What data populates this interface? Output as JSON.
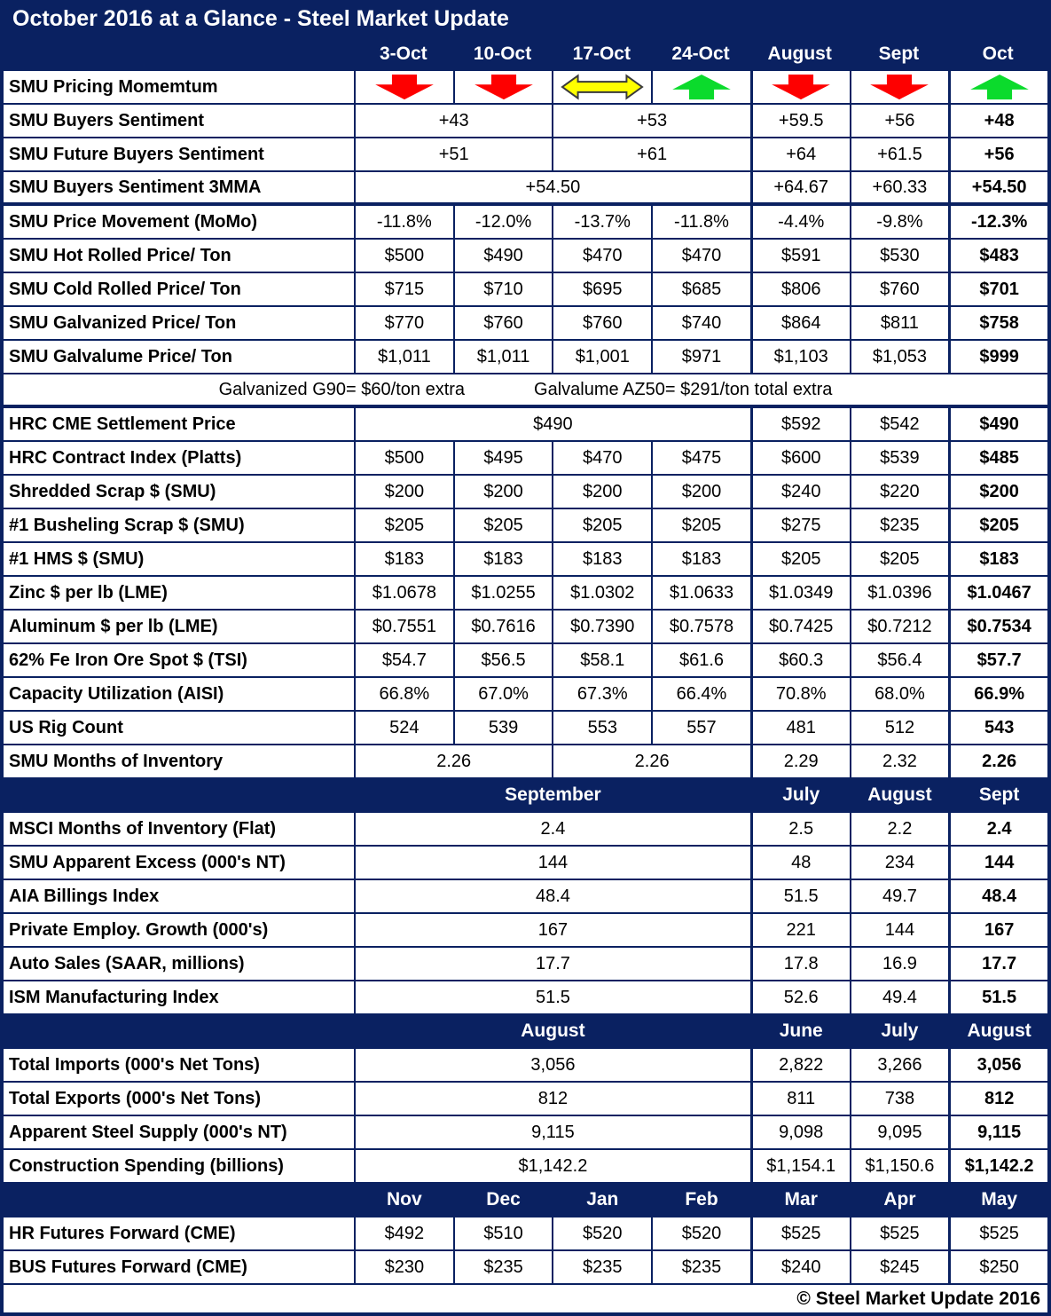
{
  "title": "October 2016 at a Glance - Steel Market Update",
  "footer": "© Steel Market Update 2016",
  "colors": {
    "navy": "#0A2161",
    "arrow_down": "#FE0000",
    "arrow_up": "#0BDB2C",
    "arrow_flat": "#FFFF00",
    "arrow_flat_outline": "#3A3A3A"
  },
  "header_columns": [
    "3-Oct",
    "10-Oct",
    "17-Oct",
    "24-Oct",
    "August",
    "Sept",
    "Oct"
  ],
  "rows": [
    {
      "label": "SMU Pricing Momemtum",
      "cells": [
        {
          "arrow": "down"
        },
        {
          "arrow": "down"
        },
        {
          "arrow": "leftright"
        },
        {
          "arrow": "up"
        },
        {
          "arrow": "down"
        },
        {
          "arrow": "down"
        },
        {
          "arrow": "up"
        }
      ]
    },
    {
      "label": "SMU Buyers Sentiment",
      "cells": [
        {
          "text": "+43",
          "span": 2
        },
        {
          "text": "+53",
          "span": 2
        },
        {
          "text": "+59.5"
        },
        {
          "text": "+56"
        },
        {
          "text": "+48",
          "bold": true
        }
      ]
    },
    {
      "label": "SMU Future Buyers Sentiment",
      "cells": [
        {
          "text": "+51",
          "span": 2
        },
        {
          "text": "+61",
          "span": 2
        },
        {
          "text": "+64"
        },
        {
          "text": "+61.5"
        },
        {
          "text": "+56",
          "bold": true
        }
      ]
    },
    {
      "label": "SMU Buyers Sentiment 3MMA",
      "thick_bottom": true,
      "cells": [
        {
          "text": "+54.50",
          "span": 4
        },
        {
          "text": "+64.67"
        },
        {
          "text": "+60.33"
        },
        {
          "text": "+54.50",
          "bold": true
        }
      ]
    },
    {
      "label": "SMU Price Movement (MoMo)",
      "cells": [
        {
          "text": "-11.8%"
        },
        {
          "text": "-12.0%"
        },
        {
          "text": "-13.7%"
        },
        {
          "text": "-11.8%"
        },
        {
          "text": "-4.4%"
        },
        {
          "text": "-9.8%"
        },
        {
          "text": "-12.3%",
          "bold": true
        }
      ]
    },
    {
      "label": "SMU Hot Rolled Price/ Ton",
      "cells": [
        {
          "text": "$500"
        },
        {
          "text": "$490"
        },
        {
          "text": "$470"
        },
        {
          "text": "$470"
        },
        {
          "text": "$591"
        },
        {
          "text": "$530"
        },
        {
          "text": "$483",
          "bold": true
        }
      ]
    },
    {
      "label": "SMU Cold Rolled Price/ Ton",
      "cells": [
        {
          "text": "$715"
        },
        {
          "text": "$710"
        },
        {
          "text": "$695"
        },
        {
          "text": "$685"
        },
        {
          "text": "$806"
        },
        {
          "text": "$760"
        },
        {
          "text": "$701",
          "bold": true
        }
      ]
    },
    {
      "label": "SMU Galvanized Price/ Ton",
      "cells": [
        {
          "text": "$770"
        },
        {
          "text": "$760"
        },
        {
          "text": "$760"
        },
        {
          "text": "$740"
        },
        {
          "text": "$864"
        },
        {
          "text": "$811"
        },
        {
          "text": "$758",
          "bold": true
        }
      ]
    },
    {
      "label": "SMU Galvalume Price/ Ton",
      "cells": [
        {
          "text": "$1,011"
        },
        {
          "text": "$1,011"
        },
        {
          "text": "$1,001"
        },
        {
          "text": "$971"
        },
        {
          "text": "$1,103"
        },
        {
          "text": "$1,053"
        },
        {
          "text": "$999",
          "bold": true
        }
      ]
    },
    {
      "type": "note",
      "thick_bottom": true,
      "note_left": "Galvanized G90= $60/ton extra",
      "note_right": "Galvalume AZ50= $291/ton total extra"
    },
    {
      "label": "HRC CME Settlement Price",
      "cells": [
        {
          "text": "$490",
          "span": 4
        },
        {
          "text": "$592"
        },
        {
          "text": "$542"
        },
        {
          "text": "$490",
          "bold": true
        }
      ]
    },
    {
      "label": "HRC Contract Index (Platts)",
      "cells": [
        {
          "text": "$500"
        },
        {
          "text": "$495"
        },
        {
          "text": "$470"
        },
        {
          "text": "$475"
        },
        {
          "text": "$600"
        },
        {
          "text": "$539"
        },
        {
          "text": "$485",
          "bold": true
        }
      ]
    },
    {
      "label": "Shredded Scrap $ (SMU)",
      "cells": [
        {
          "text": "$200"
        },
        {
          "text": "$200"
        },
        {
          "text": "$200"
        },
        {
          "text": "$200"
        },
        {
          "text": "$240"
        },
        {
          "text": "$220"
        },
        {
          "text": "$200",
          "bold": true
        }
      ]
    },
    {
      "label": "#1 Busheling Scrap $ (SMU)",
      "cells": [
        {
          "text": "$205"
        },
        {
          "text": "$205"
        },
        {
          "text": "$205"
        },
        {
          "text": "$205"
        },
        {
          "text": "$275"
        },
        {
          "text": "$235"
        },
        {
          "text": "$205",
          "bold": true
        }
      ]
    },
    {
      "label": "#1 HMS $ (SMU)",
      "cells": [
        {
          "text": "$183"
        },
        {
          "text": "$183"
        },
        {
          "text": "$183"
        },
        {
          "text": "$183"
        },
        {
          "text": "$205"
        },
        {
          "text": "$205"
        },
        {
          "text": "$183",
          "bold": true
        }
      ]
    },
    {
      "label": "Zinc $ per lb (LME)",
      "cells": [
        {
          "text": "$1.0678"
        },
        {
          "text": "$1.0255"
        },
        {
          "text": "$1.0302"
        },
        {
          "text": "$1.0633"
        },
        {
          "text": "$1.0349"
        },
        {
          "text": "$1.0396"
        },
        {
          "text": "$1.0467",
          "bold": true
        }
      ]
    },
    {
      "label": "Aluminum $ per lb (LME)",
      "cells": [
        {
          "text": "$0.7551"
        },
        {
          "text": "$0.7616"
        },
        {
          "text": "$0.7390"
        },
        {
          "text": "$0.7578"
        },
        {
          "text": "$0.7425"
        },
        {
          "text": "$0.7212"
        },
        {
          "text": "$0.7534",
          "bold": true
        }
      ]
    },
    {
      "label": "62% Fe Iron Ore Spot $ (TSI)",
      "cells": [
        {
          "text": "$54.7"
        },
        {
          "text": "$56.5"
        },
        {
          "text": "$58.1"
        },
        {
          "text": "$61.6"
        },
        {
          "text": "$60.3"
        },
        {
          "text": "$56.4"
        },
        {
          "text": "$57.7",
          "bold": true
        }
      ]
    },
    {
      "label": "Capacity Utilization (AISI)",
      "cells": [
        {
          "text": "66.8%"
        },
        {
          "text": "67.0%"
        },
        {
          "text": "67.3%"
        },
        {
          "text": "66.4%"
        },
        {
          "text": "70.8%"
        },
        {
          "text": "68.0%"
        },
        {
          "text": "66.9%",
          "bold": true
        }
      ]
    },
    {
      "label": "US Rig Count",
      "cells": [
        {
          "text": "524"
        },
        {
          "text": "539"
        },
        {
          "text": "553"
        },
        {
          "text": "557"
        },
        {
          "text": "481"
        },
        {
          "text": "512"
        },
        {
          "text": "543",
          "bold": true
        }
      ]
    },
    {
      "label": "SMU Months of Inventory",
      "cells": [
        {
          "text": "2.26",
          "span": 2
        },
        {
          "text": "2.26",
          "span": 2
        },
        {
          "text": "2.29"
        },
        {
          "text": "2.32"
        },
        {
          "text": "2.26",
          "bold": true
        }
      ]
    },
    {
      "type": "section",
      "cells": [
        {
          "text": "September",
          "span": 4
        },
        {
          "text": "July"
        },
        {
          "text": "August"
        },
        {
          "text": "Sept"
        }
      ]
    },
    {
      "label": "MSCI Months of Inventory (Flat)",
      "cells": [
        {
          "text": "2.4",
          "span": 4
        },
        {
          "text": "2.5"
        },
        {
          "text": "2.2"
        },
        {
          "text": "2.4",
          "bold": true
        }
      ]
    },
    {
      "label": "SMU Apparent Excess (000's NT)",
      "cells": [
        {
          "text": "144",
          "span": 4
        },
        {
          "text": "48"
        },
        {
          "text": "234"
        },
        {
          "text": "144",
          "bold": true
        }
      ]
    },
    {
      "label": "AIA Billings Index",
      "cells": [
        {
          "text": "48.4",
          "span": 4
        },
        {
          "text": "51.5"
        },
        {
          "text": "49.7"
        },
        {
          "text": "48.4",
          "bold": true
        }
      ]
    },
    {
      "label": "Private Employ. Growth (000's)",
      "cells": [
        {
          "text": "167",
          "span": 4
        },
        {
          "text": "221"
        },
        {
          "text": "144"
        },
        {
          "text": "167",
          "bold": true
        }
      ]
    },
    {
      "label": "Auto Sales (SAAR, millions)",
      "cells": [
        {
          "text": "17.7",
          "span": 4
        },
        {
          "text": "17.8"
        },
        {
          "text": "16.9"
        },
        {
          "text": "17.7",
          "bold": true
        }
      ]
    },
    {
      "label": "ISM Manufacturing Index",
      "cells": [
        {
          "text": "51.5",
          "span": 4
        },
        {
          "text": "52.6"
        },
        {
          "text": "49.4"
        },
        {
          "text": "51.5",
          "bold": true
        }
      ]
    },
    {
      "type": "section",
      "cells": [
        {
          "text": "August",
          "span": 4
        },
        {
          "text": "June"
        },
        {
          "text": "July"
        },
        {
          "text": "August"
        }
      ]
    },
    {
      "label": "Total Imports (000's Net Tons)",
      "cells": [
        {
          "text": "3,056",
          "span": 4
        },
        {
          "text": "2,822"
        },
        {
          "text": "3,266"
        },
        {
          "text": "3,056",
          "bold": true
        }
      ]
    },
    {
      "label": "Total Exports (000's Net Tons)",
      "cells": [
        {
          "text": "812",
          "span": 4
        },
        {
          "text": "811"
        },
        {
          "text": "738"
        },
        {
          "text": "812",
          "bold": true
        }
      ]
    },
    {
      "label": "Apparent Steel Supply (000's NT)",
      "cells": [
        {
          "text": "9,115",
          "span": 4
        },
        {
          "text": "9,098"
        },
        {
          "text": "9,095"
        },
        {
          "text": "9,115",
          "bold": true
        }
      ]
    },
    {
      "label": "Construction Spending (billions)",
      "cells": [
        {
          "text": "$1,142.2",
          "span": 4
        },
        {
          "text": "$1,154.1"
        },
        {
          "text": "$1,150.6"
        },
        {
          "text": "$1,142.2",
          "bold": true
        }
      ]
    },
    {
      "type": "section",
      "cells": [
        {
          "text": "Nov"
        },
        {
          "text": "Dec"
        },
        {
          "text": "Jan"
        },
        {
          "text": "Feb"
        },
        {
          "text": "Mar"
        },
        {
          "text": "Apr"
        },
        {
          "text": "May"
        }
      ]
    },
    {
      "label": "HR Futures Forward (CME)",
      "cells": [
        {
          "text": "$492"
        },
        {
          "text": "$510"
        },
        {
          "text": "$520"
        },
        {
          "text": "$520"
        },
        {
          "text": "$525"
        },
        {
          "text": "$525"
        },
        {
          "text": "$525"
        }
      ]
    },
    {
      "label": "BUS Futures Forward (CME)",
      "cells": [
        {
          "text": "$230"
        },
        {
          "text": "$235"
        },
        {
          "text": "$235"
        },
        {
          "text": "$235"
        },
        {
          "text": "$240"
        },
        {
          "text": "$245"
        },
        {
          "text": "$250"
        }
      ]
    }
  ]
}
